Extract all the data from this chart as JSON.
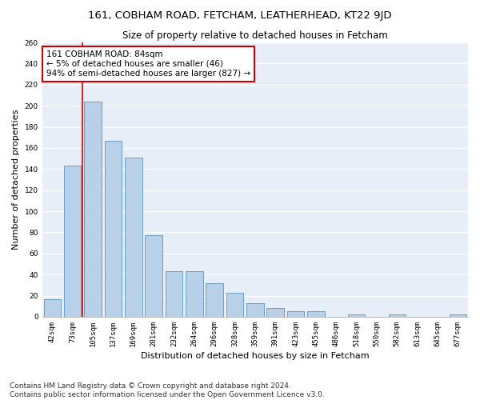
{
  "title": "161, COBHAM ROAD, FETCHAM, LEATHERHEAD, KT22 9JD",
  "subtitle": "Size of property relative to detached houses in Fetcham",
  "xlabel": "Distribution of detached houses by size in Fetcham",
  "ylabel": "Number of detached properties",
  "bar_labels": [
    "42sqm",
    "73sqm",
    "105sqm",
    "137sqm",
    "169sqm",
    "201sqm",
    "232sqm",
    "264sqm",
    "296sqm",
    "328sqm",
    "359sqm",
    "391sqm",
    "423sqm",
    "455sqm",
    "486sqm",
    "518sqm",
    "550sqm",
    "582sqm",
    "613sqm",
    "645sqm",
    "677sqm"
  ],
  "bar_heights": [
    17,
    143,
    204,
    167,
    151,
    77,
    43,
    43,
    32,
    23,
    13,
    8,
    5,
    5,
    0,
    2,
    0,
    2,
    0,
    0,
    2
  ],
  "bar_color": "#b8d0e8",
  "bar_edge_color": "#6a9fc8",
  "vline_x_index": 1.5,
  "vline_color": "#cc0000",
  "annotation_text": "161 COBHAM ROAD: 84sqm\n← 5% of detached houses are smaller (46)\n94% of semi-detached houses are larger (827) →",
  "annotation_box_color": "white",
  "annotation_box_edge": "#cc0000",
  "ylim": [
    0,
    260
  ],
  "yticks": [
    0,
    20,
    40,
    60,
    80,
    100,
    120,
    140,
    160,
    180,
    200,
    220,
    240,
    260
  ],
  "background_color": "#e8eef8",
  "footer_text": "Contains HM Land Registry data © Crown copyright and database right 2024.\nContains public sector information licensed under the Open Government Licence v3.0.",
  "title_fontsize": 9.5,
  "subtitle_fontsize": 8.5,
  "xlabel_fontsize": 8,
  "ylabel_fontsize": 8,
  "tick_fontsize": 6.5,
  "annotation_fontsize": 7.5,
  "footer_fontsize": 6.5
}
